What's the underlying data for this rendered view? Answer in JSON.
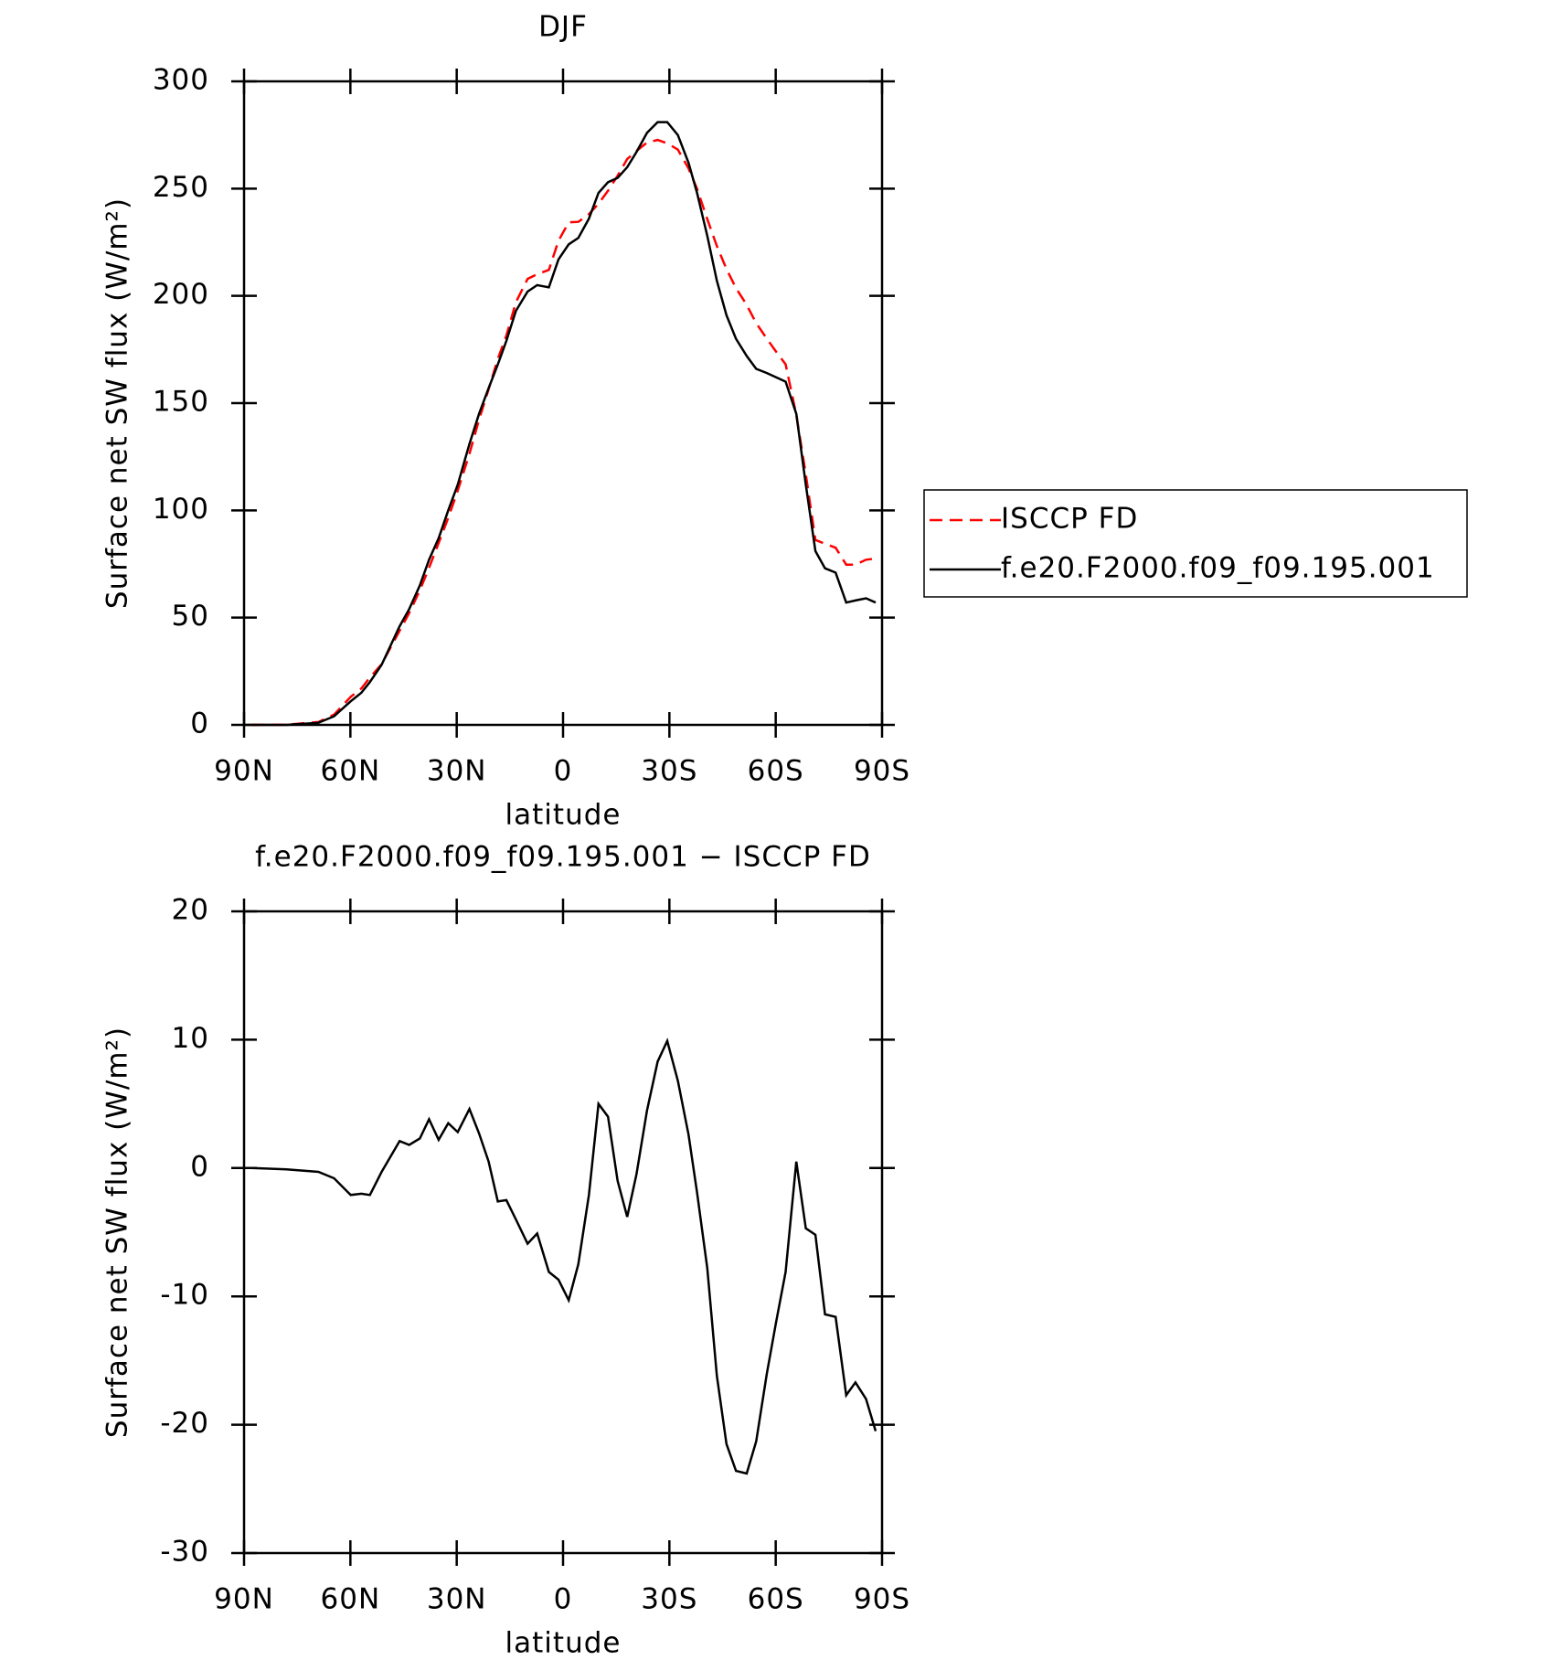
{
  "chart_data": [
    {
      "type": "line",
      "title": "DJF",
      "xlabel": "latitude",
      "ylabel": "Surface net SW flux (W/m²)",
      "x": [
        87.9,
        78,
        69,
        64.6,
        59.9,
        56.9,
        54.5,
        51.2,
        46.1,
        43.4,
        40.4,
        37.8,
        35.1,
        32.4,
        29.7,
        26.4,
        23.7,
        21.0,
        18.4,
        16.0,
        13.3,
        10.0,
        7.3,
        4.0,
        1.3,
        -1.6,
        -4.3,
        -7.3,
        -10.0,
        -12.7,
        -15.4,
        -18.1,
        -20.7,
        -23.7,
        -26.7,
        -29.4,
        -32.4,
        -35.4,
        -37.8,
        -40.7,
        -43.4,
        -46.1,
        -48.8,
        -51.8,
        -54.5,
        -57.5,
        -60.1,
        -62.8,
        -65.8,
        -68.5,
        -71.2,
        -73.9,
        -76.9,
        -79.9,
        -82.5,
        -85.5,
        -88.2
      ],
      "series": [
        {
          "name": "ISCCP FD",
          "color": "#ff0000",
          "style": "dashed",
          "values": [
            0,
            0.1,
            1.3,
            4.8,
            13.1,
            17,
            22.1,
            28.3,
            43.9,
            52.2,
            62.7,
            73.2,
            84.8,
            96.5,
            109.2,
            126.4,
            142.3,
            156.5,
            170.6,
            181.5,
            197,
            207.9,
            210.1,
            212.1,
            225.7,
            234.3,
            234.5,
            238.1,
            243,
            249,
            256,
            263.8,
            267.5,
            271.5,
            272.7,
            271.1,
            268.2,
            259.4,
            249.9,
            235.8,
            223.2,
            212.5,
            203.6,
            195.8,
            187.3,
            180,
            174,
            168.1,
            144.5,
            116.7,
            86.2,
            84.4,
            82.6,
            74.7,
            74.7,
            77,
            77.5
          ]
        },
        {
          "name": "f.e20.F2000.f09_f09.195.001",
          "color": "#000000",
          "style": "solid",
          "values": [
            0,
            0,
            1,
            4,
            11,
            15,
            20,
            28,
            46,
            54,
            65,
            77,
            87,
            100,
            112,
            131,
            145,
            157,
            168,
            179,
            193,
            202,
            205,
            204,
            217,
            224,
            227,
            236,
            248,
            253,
            255,
            260,
            267,
            276,
            281,
            281,
            275,
            262,
            248,
            228,
            207,
            191,
            180,
            172,
            166,
            164,
            162,
            160,
            145,
            112,
            81,
            73,
            71,
            57,
            58,
            59,
            57
          ]
        }
      ],
      "xlim": [
        90,
        -90
      ],
      "xticks": [
        {
          "value": 90,
          "label": "90N"
        },
        {
          "value": 60,
          "label": "60N"
        },
        {
          "value": 30,
          "label": "30N"
        },
        0,
        {
          "value": -30,
          "label": "30S"
        },
        {
          "value": -60,
          "label": "60S"
        },
        {
          "value": -90,
          "label": "90S"
        }
      ],
      "ylim": [
        0,
        300
      ],
      "yticks": [
        0,
        50,
        100,
        150,
        200,
        250,
        300
      ],
      "legend": "outside right"
    },
    {
      "type": "line",
      "title": "f.e20.F2000.f09_f09.195.001 − ISCCP FD",
      "xlabel": "latitude",
      "ylabel": "Surface net SW flux (W/m²)",
      "x": [
        87.9,
        78,
        69,
        64.6,
        59.9,
        56.9,
        54.5,
        51.2,
        46.1,
        43.4,
        40.4,
        37.8,
        35.1,
        32.4,
        29.7,
        26.4,
        23.7,
        21.0,
        18.4,
        16.0,
        13.3,
        10.0,
        7.3,
        4.0,
        1.3,
        -1.6,
        -4.3,
        -7.3,
        -10.0,
        -12.7,
        -15.4,
        -18.1,
        -20.7,
        -23.7,
        -26.7,
        -29.4,
        -32.4,
        -35.4,
        -37.8,
        -40.7,
        -43.4,
        -46.1,
        -48.8,
        -51.8,
        -54.5,
        -57.5,
        -60.1,
        -62.8,
        -65.8,
        -68.5,
        -71.2,
        -73.9,
        -76.9,
        -79.9,
        -82.5,
        -85.5,
        -88.2
      ],
      "values": [
        0,
        -0.1,
        -0.3,
        -0.8,
        -2.1,
        -2.0,
        -2.1,
        -0.3,
        2.1,
        1.8,
        2.3,
        3.8,
        2.2,
        3.5,
        2.8,
        4.6,
        2.7,
        0.5,
        -2.6,
        -2.5,
        -4.0,
        -5.9,
        -5.1,
        -8.1,
        -8.7,
        -10.3,
        -7.5,
        -2.1,
        5.0,
        4.0,
        -1.0,
        -3.8,
        -0.5,
        4.5,
        8.3,
        9.9,
        6.8,
        2.6,
        -1.9,
        -7.8,
        -16.2,
        -21.5,
        -23.6,
        -23.8,
        -21.3,
        -16.0,
        -12.0,
        -8.1,
        0.5,
        -4.7,
        -5.2,
        -11.4,
        -11.6,
        -17.7,
        -16.7,
        -18.0,
        -20.5
      ],
      "color": "#000000",
      "style": "solid",
      "xlim": [
        90,
        -90
      ],
      "xticks": [
        {
          "value": 90,
          "label": "90N"
        },
        {
          "value": 60,
          "label": "60N"
        },
        {
          "value": 30,
          "label": "30N"
        },
        0,
        {
          "value": -30,
          "label": "30S"
        },
        {
          "value": -60,
          "label": "60S"
        },
        {
          "value": -90,
          "label": "90S"
        }
      ],
      "ylim": [
        -30,
        20
      ],
      "yticks": [
        -30,
        -20,
        -10,
        0,
        10,
        20
      ]
    }
  ]
}
